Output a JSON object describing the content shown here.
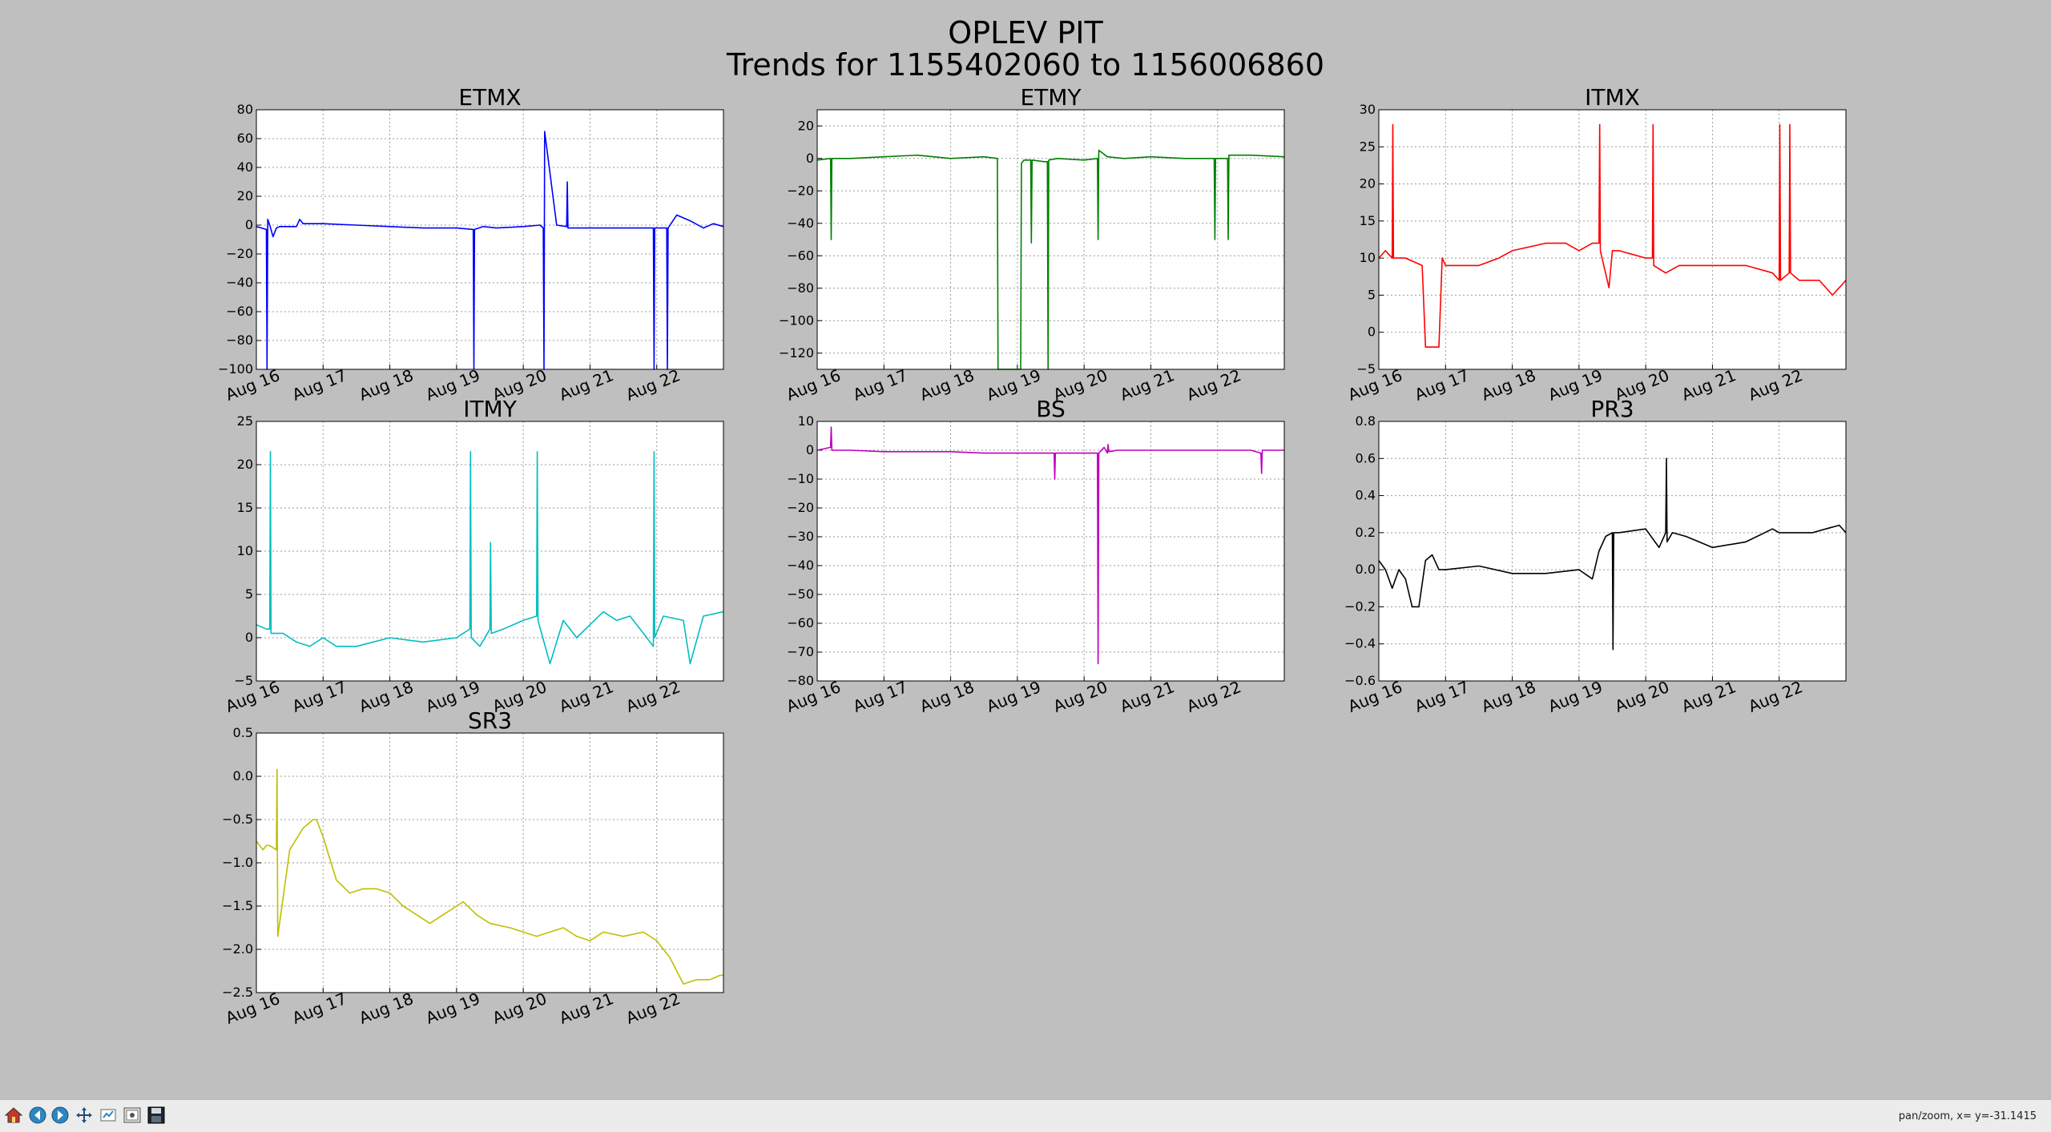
{
  "figure": {
    "title_line1": "OPLEV PIT",
    "title_line2": "Trends for 1155402060 to 1156006860"
  },
  "chart_data": [
    {
      "type": "line",
      "title": "ETMX",
      "color": "#0000ff",
      "ylim": [
        -100,
        80
      ],
      "yticks": [
        -100,
        -80,
        -60,
        -40,
        -20,
        0,
        20,
        40,
        60,
        80
      ],
      "xlim": [
        0,
        7
      ],
      "xtick_labels": [
        "Aug 16",
        "Aug 17",
        "Aug 18",
        "Aug 19",
        "Aug 20",
        "Aug 21",
        "Aug 22"
      ],
      "grid": true,
      "x": [
        0,
        0.15,
        0.16,
        0.17,
        0.2,
        0.25,
        0.3,
        0.35,
        0.4,
        0.5,
        0.6,
        0.65,
        0.7,
        1.0,
        1.5,
        2.0,
        2.5,
        3.0,
        3.25,
        3.26,
        3.27,
        3.4,
        3.6,
        4.0,
        4.25,
        4.3,
        4.31,
        4.32,
        4.5,
        4.65,
        4.66,
        4.67,
        5.0,
        5.5,
        5.95,
        5.96,
        5.97,
        6.1,
        6.15,
        6.16,
        6.17,
        6.3,
        6.5,
        6.7,
        6.85,
        7.0
      ],
      "values": [
        -1,
        -3,
        -100,
        4,
        0,
        -8,
        -2,
        -1,
        -1,
        -1,
        -1,
        4,
        1,
        1,
        0,
        -1,
        -2,
        -2,
        -3,
        -100,
        -3,
        -1,
        -2,
        -1,
        0,
        -2,
        -100,
        65,
        0,
        -1,
        30,
        -2,
        -2,
        -2,
        -2,
        -100,
        -2,
        -2,
        -2,
        -100,
        -2,
        7,
        3,
        -2,
        1,
        -1
      ]
    },
    {
      "type": "line",
      "title": "ETMY",
      "color": "#008000",
      "ylim": [
        -130,
        30
      ],
      "yticks": [
        -120,
        -100,
        -80,
        -60,
        -40,
        -20,
        0,
        20
      ],
      "xlim": [
        0,
        7
      ],
      "xtick_labels": [
        "Aug 16",
        "Aug 17",
        "Aug 18",
        "Aug 19",
        "Aug 20",
        "Aug 21",
        "Aug 22"
      ],
      "grid": true,
      "x": [
        0,
        0.2,
        0.21,
        0.22,
        0.5,
        1.0,
        1.5,
        2.0,
        2.5,
        2.7,
        2.71,
        3.0,
        3.05,
        3.06,
        3.1,
        3.2,
        3.21,
        3.22,
        3.4,
        3.45,
        3.46,
        3.47,
        3.6,
        4.0,
        4.2,
        4.21,
        4.22,
        4.35,
        4.6,
        5.0,
        5.5,
        5.95,
        5.96,
        5.97,
        6.15,
        6.16,
        6.17,
        6.5,
        7.0
      ],
      "values": [
        -1,
        0,
        -50,
        0,
        0,
        1,
        2,
        0,
        1,
        0,
        -130,
        -130,
        -130,
        -3,
        -1,
        -1,
        -52,
        -1,
        -2,
        -2,
        -130,
        -1,
        0,
        -1,
        0,
        -50,
        5,
        1,
        0,
        1,
        0,
        0,
        -50,
        0,
        0,
        -50,
        2,
        2,
        1
      ]
    },
    {
      "type": "line",
      "title": "ITMX",
      "color": "#ff0000",
      "ylim": [
        -5,
        30
      ],
      "yticks": [
        -5,
        0,
        5,
        10,
        15,
        20,
        25,
        30
      ],
      "xlim": [
        0,
        7
      ],
      "xtick_labels": [
        "Aug 16",
        "Aug 17",
        "Aug 18",
        "Aug 19",
        "Aug 20",
        "Aug 21",
        "Aug 22"
      ],
      "grid": true,
      "x": [
        0,
        0.1,
        0.2,
        0.21,
        0.22,
        0.4,
        0.65,
        0.7,
        0.75,
        0.9,
        0.95,
        1.0,
        1.5,
        1.8,
        2.0,
        2.5,
        2.8,
        3.0,
        3.2,
        3.3,
        3.31,
        3.32,
        3.45,
        3.5,
        3.6,
        4.0,
        4.1,
        4.11,
        4.12,
        4.3,
        4.5,
        4.8,
        5.0,
        5.5,
        5.9,
        6.0,
        6.01,
        6.02,
        6.15,
        6.16,
        6.17,
        6.3,
        6.6,
        6.8,
        7.0
      ],
      "values": [
        10,
        11,
        10,
        28,
        10,
        10,
        9,
        -2,
        -2,
        -2,
        10,
        9,
        9,
        10,
        11,
        12,
        12,
        11,
        12,
        12,
        28,
        11,
        6,
        11,
        11,
        10,
        10,
        28,
        9,
        8,
        9,
        9,
        9,
        9,
        8,
        7,
        28,
        7,
        8,
        28,
        8,
        7,
        7,
        5,
        7
      ]
    },
    {
      "type": "line",
      "title": "ITMY",
      "color": "#00bfbf",
      "ylim": [
        -5,
        25
      ],
      "yticks": [
        -5,
        0,
        5,
        10,
        15,
        20,
        25
      ],
      "xlim": [
        0,
        7
      ],
      "xtick_labels": [
        "Aug 16",
        "Aug 17",
        "Aug 18",
        "Aug 19",
        "Aug 20",
        "Aug 21",
        "Aug 22"
      ],
      "grid": true,
      "x": [
        0,
        0.15,
        0.2,
        0.21,
        0.22,
        0.4,
        0.6,
        0.8,
        1.0,
        1.2,
        1.5,
        2.0,
        2.5,
        3.0,
        3.1,
        3.2,
        3.21,
        3.22,
        3.35,
        3.5,
        3.51,
        3.52,
        3.7,
        4.0,
        4.2,
        4.21,
        4.22,
        4.4,
        4.6,
        4.8,
        5.0,
        5.2,
        5.4,
        5.6,
        5.8,
        5.95,
        5.96,
        5.97,
        6.1,
        6.4,
        6.5,
        6.7,
        7.0
      ],
      "values": [
        1.5,
        1,
        1,
        21.5,
        0.5,
        0.5,
        -0.5,
        -1,
        0,
        -1,
        -1,
        0,
        -0.5,
        0,
        0.5,
        1,
        21.5,
        0,
        -1,
        1,
        11,
        0.5,
        1,
        2,
        2.5,
        21.5,
        2,
        -3,
        2,
        0,
        1.5,
        3,
        2,
        2.5,
        0.5,
        -1,
        21.5,
        0,
        2.5,
        2,
        -3,
        2.5,
        3
      ]
    },
    {
      "type": "line",
      "title": "BS",
      "color": "#bf00bf",
      "ylim": [
        -80,
        10
      ],
      "yticks": [
        -80,
        -70,
        -60,
        -50,
        -40,
        -30,
        -20,
        -10,
        0,
        10
      ],
      "xlim": [
        0,
        7
      ],
      "xtick_labels": [
        "Aug 16",
        "Aug 17",
        "Aug 18",
        "Aug 19",
        "Aug 20",
        "Aug 21",
        "Aug 22"
      ],
      "grid": true,
      "x": [
        0,
        0.2,
        0.21,
        0.22,
        0.5,
        1.0,
        1.5,
        2.0,
        2.5,
        3.0,
        3.5,
        3.55,
        3.56,
        3.57,
        4.0,
        4.2,
        4.21,
        4.22,
        4.3,
        4.35,
        4.36,
        4.37,
        4.5,
        5.0,
        5.5,
        6.0,
        6.5,
        6.65,
        6.66,
        6.67,
        7.0
      ],
      "values": [
        0,
        1,
        8,
        0,
        0,
        -0.5,
        -0.5,
        -0.5,
        -1,
        -1,
        -1,
        -1,
        -10,
        -1,
        -1,
        -1,
        -74,
        -1,
        1,
        -1,
        2,
        -0.5,
        0,
        0,
        0,
        0,
        0,
        -1,
        -8,
        0,
        0
      ]
    },
    {
      "type": "line",
      "title": "PR3",
      "color": "#000000",
      "ylim": [
        -0.6,
        0.8
      ],
      "yticks": [
        -0.6,
        -0.4,
        -0.2,
        0.0,
        0.2,
        0.4,
        0.6,
        0.8
      ],
      "xlim": [
        0,
        7
      ],
      "xtick_labels": [
        "Aug 16",
        "Aug 17",
        "Aug 18",
        "Aug 19",
        "Aug 20",
        "Aug 21",
        "Aug 22"
      ],
      "grid": true,
      "x": [
        0,
        0.1,
        0.2,
        0.3,
        0.4,
        0.5,
        0.6,
        0.7,
        0.8,
        0.9,
        1.0,
        1.5,
        2.0,
        2.5,
        3.0,
        3.2,
        3.3,
        3.4,
        3.5,
        3.51,
        3.52,
        3.6,
        4.0,
        4.2,
        4.3,
        4.31,
        4.32,
        4.4,
        4.6,
        4.8,
        5.0,
        5.5,
        5.9,
        6.0,
        6.2,
        6.5,
        6.7,
        6.9,
        7.0
      ],
      "values": [
        0.05,
        0.0,
        -0.1,
        0.0,
        -0.05,
        -0.2,
        -0.2,
        0.05,
        0.08,
        0.0,
        0.0,
        0.02,
        -0.02,
        -0.02,
        0.0,
        -0.05,
        0.1,
        0.18,
        0.2,
        -0.43,
        0.2,
        0.2,
        0.22,
        0.12,
        0.2,
        0.6,
        0.15,
        0.2,
        0.18,
        0.15,
        0.12,
        0.15,
        0.22,
        0.2,
        0.2,
        0.2,
        0.22,
        0.24,
        0.2
      ]
    },
    {
      "type": "line",
      "title": "SR3",
      "color": "#bfbf00",
      "ylim": [
        -2.5,
        0.5
      ],
      "yticks": [
        -2.5,
        -2.0,
        -1.5,
        -1.0,
        -0.5,
        0.0,
        0.5
      ],
      "xlim": [
        0,
        7
      ],
      "xtick_labels": [
        "Aug 16",
        "Aug 17",
        "Aug 18",
        "Aug 19",
        "Aug 20",
        "Aug 21",
        "Aug 22"
      ],
      "grid": true,
      "x": [
        0,
        0.1,
        0.15,
        0.2,
        0.3,
        0.31,
        0.32,
        0.5,
        0.7,
        0.85,
        0.9,
        1.0,
        1.2,
        1.4,
        1.6,
        1.8,
        2.0,
        2.2,
        2.4,
        2.6,
        2.8,
        3.0,
        3.1,
        3.3,
        3.5,
        3.8,
        4.0,
        4.2,
        4.4,
        4.6,
        4.8,
        5.0,
        5.2,
        5.5,
        5.8,
        6.0,
        6.2,
        6.4,
        6.6,
        6.8,
        6.95,
        7.0
      ],
      "values": [
        -0.75,
        -0.85,
        -0.8,
        -0.8,
        -0.85,
        0.08,
        -1.85,
        -0.85,
        -0.6,
        -0.5,
        -0.5,
        -0.7,
        -1.2,
        -1.35,
        -1.3,
        -1.3,
        -1.35,
        -1.5,
        -1.6,
        -1.7,
        -1.6,
        -1.5,
        -1.45,
        -1.6,
        -1.7,
        -1.75,
        -1.8,
        -1.85,
        -1.8,
        -1.75,
        -1.85,
        -1.9,
        -1.8,
        -1.85,
        -1.8,
        -1.9,
        -2.1,
        -2.4,
        -2.35,
        -2.35,
        -2.3,
        -2.3
      ]
    }
  ],
  "toolbar": {
    "buttons": [
      "home-icon",
      "back-icon",
      "forward-icon",
      "pan-icon",
      "zoom-icon",
      "configure-icon",
      "save-icon"
    ],
    "status": "pan/zoom, x= y=-31.1415"
  }
}
